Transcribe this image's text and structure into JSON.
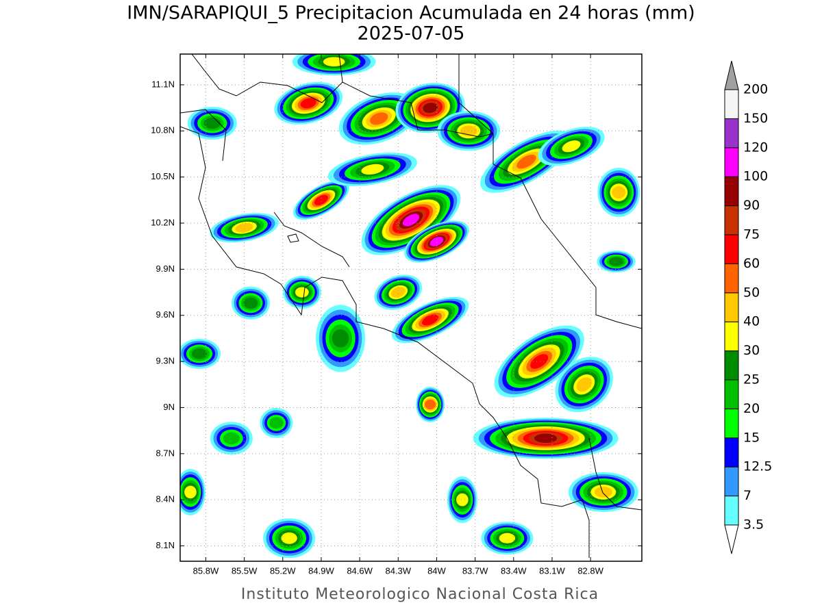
{
  "header": {
    "title": "IMN/SARAPIQUI_5 Precipitacion Acumulada en 24 horas (mm)",
    "subtitle": "2025-07-05"
  },
  "map": {
    "lonlim": [
      -86.0,
      -82.4
    ],
    "latlim": [
      8.0,
      11.3
    ],
    "grid": true,
    "lonticks": [
      {
        "value": -85.8,
        "label": "85.8W"
      },
      {
        "value": -85.5,
        "label": "85.5W"
      },
      {
        "value": -85.2,
        "label": "85.2W"
      },
      {
        "value": -84.9,
        "label": "84.9W"
      },
      {
        "value": -84.6,
        "label": "84.6W"
      },
      {
        "value": -84.3,
        "label": "84.3W"
      },
      {
        "value": -84.0,
        "label": "84W"
      },
      {
        "value": -83.7,
        "label": "83.7W"
      },
      {
        "value": -83.4,
        "label": "83.4W"
      },
      {
        "value": -83.1,
        "label": "83.1W"
      },
      {
        "value": -82.8,
        "label": "82.8W"
      }
    ],
    "latticks": [
      {
        "value": 8.1,
        "label": "8.1N"
      },
      {
        "value": 8.4,
        "label": "8.4N"
      },
      {
        "value": 8.7,
        "label": "8.7N"
      },
      {
        "value": 9.0,
        "label": "9N"
      },
      {
        "value": 9.3,
        "label": "9.3N"
      },
      {
        "value": 9.6,
        "label": "9.6N"
      },
      {
        "value": 9.9,
        "label": "9.9N"
      },
      {
        "value": 10.2,
        "label": "10.2N"
      },
      {
        "value": 10.5,
        "label": "10.5N"
      },
      {
        "value": 10.8,
        "label": "10.8N"
      },
      {
        "value": 11.1,
        "label": "11.1N"
      }
    ]
  },
  "colorbar": {
    "levels": [
      3.5,
      7,
      12.5,
      15,
      20,
      25,
      30,
      40,
      50,
      60,
      75,
      90,
      100,
      120,
      150,
      200
    ],
    "colors": [
      "#66ffff",
      "#3399ff",
      "#0000ff",
      "#00ff00",
      "#00c000",
      "#008c00",
      "#ffff00",
      "#ffc800",
      "#ff6400",
      "#ff0000",
      "#c83200",
      "#960000",
      "#ff00ff",
      "#9933cc",
      "#f5f5f5"
    ],
    "under_color": "#ffffff",
    "over_color": "#a0a0a0"
  },
  "footer": "Instituto Meteorologico Nacional Costa Rica"
}
